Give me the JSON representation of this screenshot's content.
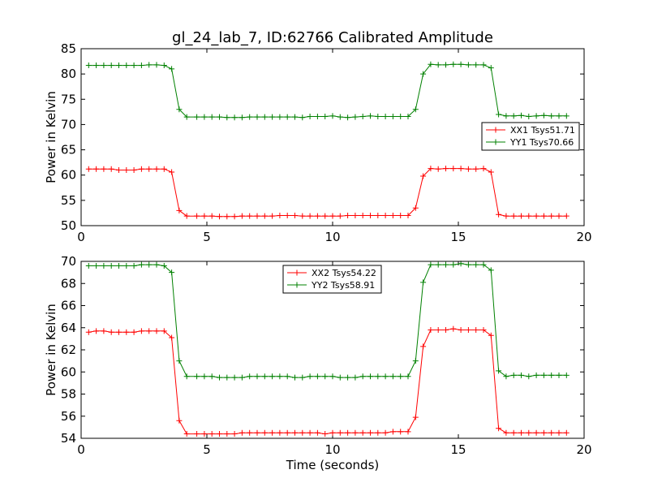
{
  "title": "gl_24_lab_7, ID:62766 Calibrated Amplitude",
  "colors": {
    "red": "#ff0000",
    "green": "#008000",
    "frame": "#000000"
  },
  "chart_data": [
    {
      "type": "line",
      "xlabel": "",
      "ylabel": "Power in Kelvin",
      "xlim": [
        0,
        20
      ],
      "ylim": [
        50,
        85
      ],
      "xticks": [
        "0",
        "5",
        "10",
        "15",
        "20"
      ],
      "yticks": [
        "50",
        "55",
        "60",
        "65",
        "70",
        "75",
        "80",
        "85"
      ],
      "legend_position": "center-right",
      "grid": false,
      "x": [
        0.3,
        0.6,
        0.9,
        1.2,
        1.5,
        1.8,
        2.1,
        2.4,
        2.7,
        3.0,
        3.3,
        3.6,
        3.9,
        4.2,
        4.6,
        4.9,
        5.2,
        5.5,
        5.8,
        6.1,
        6.4,
        6.7,
        7.0,
        7.3,
        7.6,
        7.9,
        8.2,
        8.5,
        8.8,
        9.1,
        9.4,
        9.7,
        10.0,
        10.3,
        10.6,
        10.9,
        11.2,
        11.5,
        11.8,
        12.1,
        12.4,
        12.7,
        13.0,
        13.3,
        13.6,
        13.9,
        14.2,
        14.5,
        14.8,
        15.1,
        15.4,
        15.7,
        16.0,
        16.3,
        16.6,
        16.9,
        17.2,
        17.5,
        17.8,
        18.1,
        18.4,
        18.7,
        19.0,
        19.3
      ],
      "series": [
        {
          "name": "XX1 Tsys51.71",
          "color": "#ff0000",
          "values": [
            61.2,
            61.2,
            61.2,
            61.2,
            61.0,
            61.0,
            61.0,
            61.2,
            61.2,
            61.2,
            61.2,
            60.6,
            53.0,
            51.9,
            51.9,
            51.9,
            51.9,
            51.8,
            51.8,
            51.8,
            51.9,
            51.9,
            51.9,
            51.9,
            51.9,
            52.0,
            52.0,
            52.0,
            51.9,
            51.9,
            51.9,
            51.9,
            51.9,
            51.9,
            52.0,
            52.0,
            52.0,
            52.0,
            52.0,
            52.0,
            52.0,
            52.0,
            52.0,
            53.5,
            59.8,
            61.3,
            61.2,
            61.3,
            61.3,
            61.3,
            61.2,
            61.2,
            61.3,
            60.6,
            52.2,
            51.9,
            51.9,
            51.9,
            51.9,
            51.9,
            51.9,
            51.9,
            51.9,
            51.9
          ]
        },
        {
          "name": "YY1 Tsys70.66",
          "color": "#008000",
          "values": [
            81.7,
            81.7,
            81.7,
            81.7,
            81.7,
            81.7,
            81.7,
            81.7,
            81.8,
            81.8,
            81.7,
            81.0,
            73.0,
            71.5,
            71.5,
            71.5,
            71.5,
            71.5,
            71.4,
            71.4,
            71.4,
            71.5,
            71.5,
            71.5,
            71.5,
            71.5,
            71.5,
            71.5,
            71.4,
            71.6,
            71.6,
            71.6,
            71.7,
            71.5,
            71.4,
            71.5,
            71.6,
            71.7,
            71.6,
            71.6,
            71.6,
            71.6,
            71.6,
            73.0,
            80.0,
            81.9,
            81.8,
            81.8,
            81.9,
            81.9,
            81.8,
            81.8,
            81.8,
            81.2,
            72.0,
            71.7,
            71.7,
            71.8,
            71.6,
            71.7,
            71.8,
            71.7,
            71.7,
            71.7
          ]
        }
      ]
    },
    {
      "type": "line",
      "xlabel": "Time (seconds)",
      "ylabel": "Power in Kelvin",
      "xlim": [
        0,
        20
      ],
      "ylim": [
        54,
        70
      ],
      "xticks": [
        "0",
        "5",
        "10",
        "15",
        "20"
      ],
      "yticks": [
        "54",
        "56",
        "58",
        "60",
        "62",
        "64",
        "66",
        "68",
        "70"
      ],
      "legend_position": "top-center",
      "grid": false,
      "x": [
        0.3,
        0.6,
        0.9,
        1.2,
        1.5,
        1.8,
        2.1,
        2.4,
        2.7,
        3.0,
        3.3,
        3.6,
        3.9,
        4.2,
        4.6,
        4.9,
        5.2,
        5.5,
        5.8,
        6.1,
        6.4,
        6.7,
        7.0,
        7.3,
        7.6,
        7.9,
        8.2,
        8.5,
        8.8,
        9.1,
        9.4,
        9.7,
        10.0,
        10.3,
        10.6,
        10.9,
        11.2,
        11.5,
        11.8,
        12.1,
        12.4,
        12.7,
        13.0,
        13.3,
        13.6,
        13.9,
        14.2,
        14.5,
        14.8,
        15.1,
        15.4,
        15.7,
        16.0,
        16.3,
        16.6,
        16.9,
        17.2,
        17.5,
        17.8,
        18.1,
        18.4,
        18.7,
        19.0,
        19.3
      ],
      "series": [
        {
          "name": "XX2 Tsys54.22",
          "color": "#ff0000",
          "values": [
            63.6,
            63.7,
            63.7,
            63.6,
            63.6,
            63.6,
            63.6,
            63.7,
            63.7,
            63.7,
            63.7,
            63.1,
            55.6,
            54.4,
            54.4,
            54.4,
            54.4,
            54.4,
            54.4,
            54.4,
            54.5,
            54.5,
            54.5,
            54.5,
            54.5,
            54.5,
            54.5,
            54.5,
            54.5,
            54.5,
            54.5,
            54.4,
            54.5,
            54.5,
            54.5,
            54.5,
            54.5,
            54.5,
            54.5,
            54.5,
            54.6,
            54.6,
            54.6,
            55.9,
            62.3,
            63.8,
            63.8,
            63.8,
            63.9,
            63.8,
            63.8,
            63.8,
            63.8,
            63.3,
            54.9,
            54.5,
            54.5,
            54.5,
            54.5,
            54.5,
            54.5,
            54.5,
            54.5,
            54.5
          ]
        },
        {
          "name": "YY2 Tsys58.91",
          "color": "#008000",
          "values": [
            69.6,
            69.6,
            69.6,
            69.6,
            69.6,
            69.6,
            69.6,
            69.7,
            69.7,
            69.7,
            69.6,
            69.0,
            61.0,
            59.6,
            59.6,
            59.6,
            59.6,
            59.5,
            59.5,
            59.5,
            59.5,
            59.6,
            59.6,
            59.6,
            59.6,
            59.6,
            59.6,
            59.5,
            59.5,
            59.6,
            59.6,
            59.6,
            59.6,
            59.5,
            59.5,
            59.5,
            59.6,
            59.6,
            59.6,
            59.6,
            59.6,
            59.6,
            59.6,
            61.0,
            68.1,
            69.7,
            69.7,
            69.7,
            69.7,
            69.8,
            69.7,
            69.7,
            69.7,
            69.2,
            60.1,
            59.6,
            59.7,
            59.7,
            59.6,
            59.7,
            59.7,
            59.7,
            59.7,
            59.7
          ]
        }
      ]
    }
  ]
}
